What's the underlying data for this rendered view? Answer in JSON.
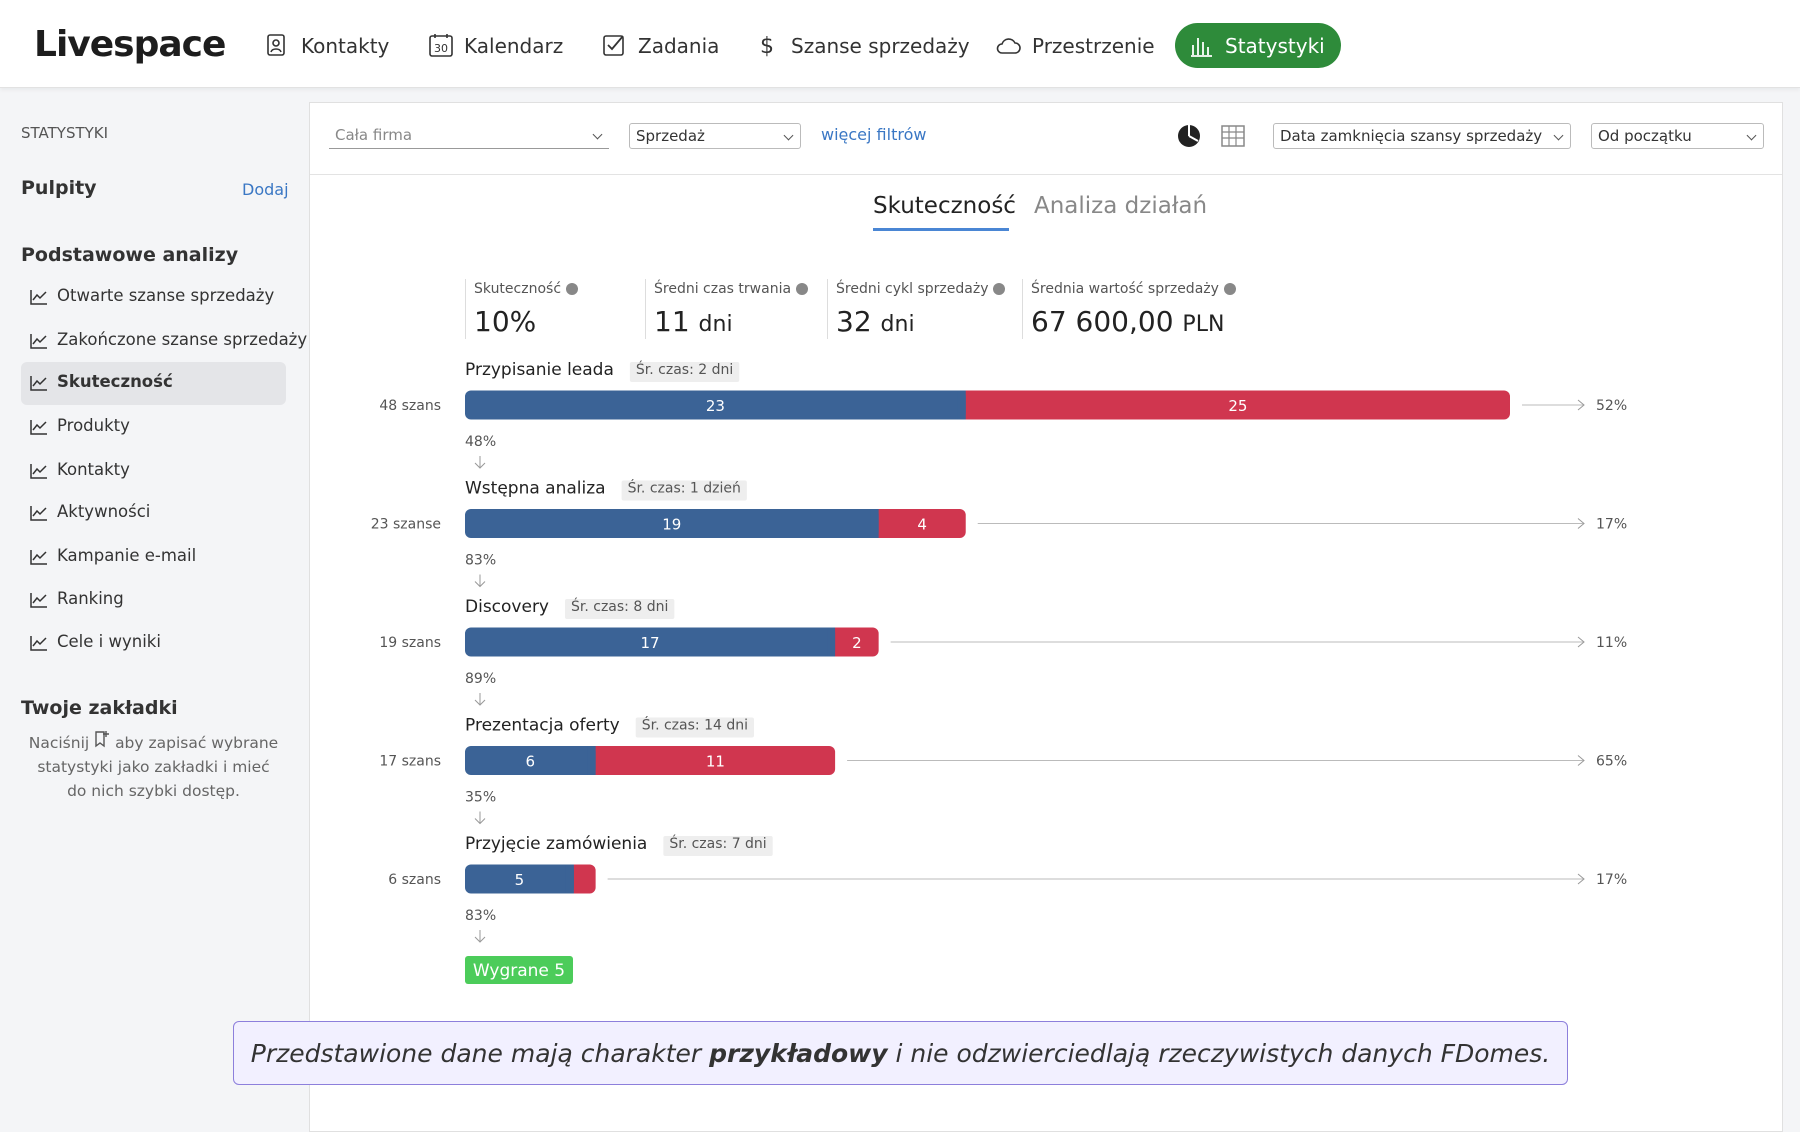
{
  "nav": {
    "logo": "Livespace",
    "calendar_icon": "30",
    "items": [
      "Kontakty",
      "Kalendarz",
      "Zadania",
      "Szanse sprzedaży",
      "Przestrzenie",
      "Statystyki"
    ]
  },
  "sidebar": {
    "section": "STATYSTYKI",
    "dashboards": "Pulpity",
    "add": "Dodaj",
    "basic_title": "Podstawowe analizy",
    "basic_items": [
      "Otwarte szanse sprzedaży",
      "Zakończone szanse sprzedaży",
      "Skuteczność",
      "Produkty",
      "Kontakty",
      "Aktywności",
      "Kampanie e-mail",
      "Ranking",
      "Cele i wyniki"
    ],
    "bookmarks_title": "Twoje zakładki",
    "bookmarks_text": [
      "Naciśnij",
      "aby zapisać wybrane statystyki jako zakładki i mieć do nich szybki dostęp."
    ]
  },
  "filters": {
    "company": "Cała firma",
    "pipeline": "Sprzedaż",
    "more": "więcej filtrów",
    "date_field": "Data zamknięcia szansy sprzedaży",
    "period": "Od początku"
  },
  "tabs": [
    "Skuteczność",
    "Analiza działań"
  ],
  "kpis": [
    {
      "label": "Skuteczność",
      "value": "10%"
    },
    {
      "label": "Średni czas trwania",
      "value": "11",
      "unit": "dni"
    },
    {
      "label": "Średni cykl sprzedaży",
      "value": "32",
      "unit": "dni"
    },
    {
      "label": "Średnia wartość sprzedaży",
      "value": "67 600,00",
      "unit": "PLN"
    }
  ],
  "chart_data": {
    "type": "funnel",
    "colors": {
      "won": "#3b6396",
      "lost": "#d0364f"
    },
    "stages": [
      {
        "name": "Przypisanie leada",
        "avg_time": "Śr. czas: 2 dni",
        "count_label": "48 szans",
        "won": 23,
        "lost": 25,
        "conversion": "48%",
        "exit": "52%"
      },
      {
        "name": "Wstępna analiza",
        "avg_time": "Śr. czas: 1 dzień",
        "count_label": "23 szanse",
        "won": 19,
        "lost": 4,
        "conversion": "83%",
        "exit": "17%"
      },
      {
        "name": "Discovery",
        "avg_time": "Śr. czas: 8 dni",
        "count_label": "19 szans",
        "won": 17,
        "lost": 2,
        "conversion": "89%",
        "exit": "11%"
      },
      {
        "name": "Prezentacja oferty",
        "avg_time": "Śr. czas: 14 dni",
        "count_label": "17 szans",
        "won": 6,
        "lost": 11,
        "conversion": "35%",
        "exit": "65%"
      },
      {
        "name": "Przyjęcie zamówienia",
        "avg_time": "Śr. czas: 7 dni",
        "count_label": "6 szans",
        "won": 5,
        "lost": 1,
        "conversion": "83%",
        "exit": "17%"
      }
    ],
    "won_label": "Wygrane 5"
  },
  "note": [
    "Przedstawione dane mają charakter ",
    "przykładowy",
    " i nie odzwierciedlają rzeczywistych danych FDomes."
  ]
}
